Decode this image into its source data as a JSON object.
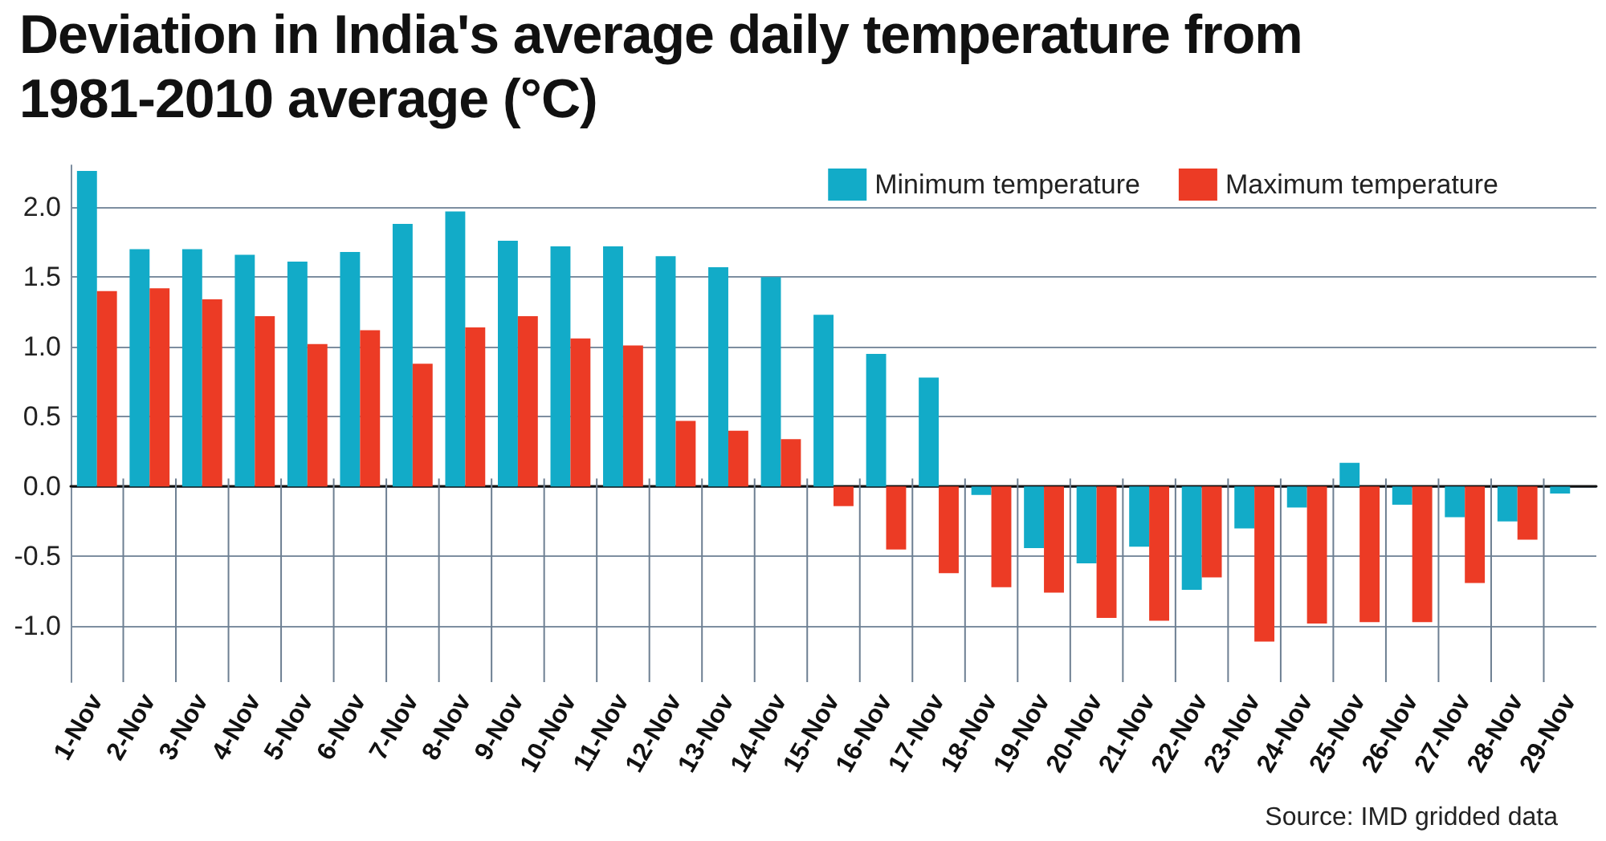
{
  "chart_data": {
    "type": "bar",
    "title": "Deviation in India's average daily temperature from 1981-2010 average (°C)",
    "categories": [
      "1-Nov",
      "2-Nov",
      "3-Nov",
      "4-Nov",
      "5-Nov",
      "6-Nov",
      "7-Nov",
      "8-Nov",
      "9-Nov",
      "10-Nov",
      "11-Nov",
      "12-Nov",
      "13-Nov",
      "14-Nov",
      "15-Nov",
      "16-Nov",
      "17-Nov",
      "18-Nov",
      "19-Nov",
      "20-Nov",
      "21-Nov",
      "22-Nov",
      "23-Nov",
      "24-Nov",
      "25-Nov",
      "26-Nov",
      "27-Nov",
      "28-Nov",
      "29-Nov"
    ],
    "series": [
      {
        "name": "Minimum temperature",
        "color": "#12abc8",
        "values": [
          2.26,
          1.7,
          1.7,
          1.66,
          1.61,
          1.68,
          1.88,
          1.97,
          1.76,
          1.72,
          1.72,
          1.65,
          1.57,
          1.5,
          1.23,
          0.95,
          0.78,
          -0.06,
          -0.44,
          -0.55,
          -0.43,
          -0.74,
          -0.3,
          -0.15,
          0.17,
          -0.13,
          -0.22,
          -0.25,
          -0.05
        ]
      },
      {
        "name": "Maximum temperature",
        "color": "#ec3b25",
        "values": [
          1.4,
          1.42,
          1.34,
          1.22,
          1.02,
          1.12,
          0.88,
          1.14,
          1.22,
          1.06,
          1.01,
          0.47,
          0.4,
          0.34,
          -0.14,
          -0.45,
          -0.62,
          -0.72,
          -0.76,
          -0.94,
          -0.96,
          -0.65,
          -1.11,
          -0.98,
          -0.97,
          -0.97,
          -0.69,
          -0.38,
          null
        ]
      }
    ],
    "ylim": [
      -1.4,
      2.3
    ],
    "yticks": [
      {
        "value": -1,
        "label": "-1.0"
      },
      {
        "value": -0.5,
        "label": "-0.5"
      },
      {
        "value": 0,
        "label": "0.0"
      },
      {
        "value": 0.5,
        "label": "0.5"
      },
      {
        "value": 1,
        "label": "1.0"
      },
      {
        "value": 1.5,
        "label": "1.5"
      },
      {
        "value": 2,
        "label": "2.0"
      }
    ],
    "grid": "y",
    "legend": "top right",
    "annotations": [
      "Source: IMD gridded data"
    ]
  }
}
